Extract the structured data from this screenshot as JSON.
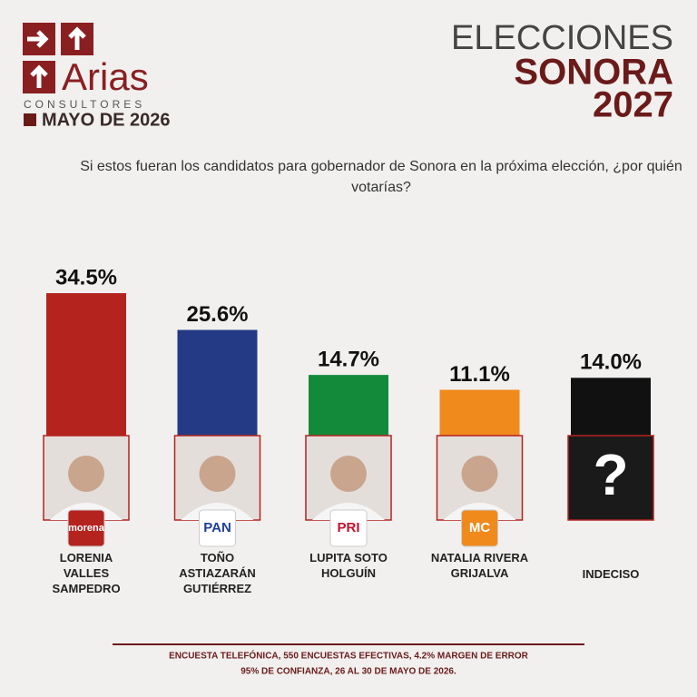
{
  "header": {
    "brand": "Arias",
    "brand_sub": "CONSULTORES",
    "date": "MAYO DE 2026",
    "title_1": "ELECCIONES",
    "title_2": "SONORA",
    "title_3": "2027"
  },
  "chart_data": {
    "type": "bar",
    "title": "Si estos fueran los candidatos para gobernador de Sonora en la próxima elección, ¿por quién votarías?",
    "categories": [
      "LORENIA VALLES SAMPEDRO",
      "TOÑO ASTIAZARÁN GUTIÉRREZ",
      "LUPITA SOTO HOLGUÍN",
      "NATALIA RIVERA GRIJALVA",
      "INDECISO"
    ],
    "values": [
      34.5,
      25.6,
      14.7,
      11.1,
      14.0
    ],
    "value_labels": [
      "34.5%",
      "25.6%",
      "14.7%",
      "11.1%",
      "14.0%"
    ],
    "colors": [
      "#b5231f",
      "#243a85",
      "#128a3a",
      "#f08a1c",
      "#111111"
    ],
    "parties": [
      "morena",
      "PAN",
      "PRI",
      "MC",
      null
    ],
    "unknown_mark": "?"
  },
  "footer": [
    "ENCUESTA TELEFÓNICA, 550 ENCUESTAS EFECTIVAS, 4.2%  MARGEN DE ERROR",
    "95% DE CONFIANZA, 26 AL 30 DE MAYO DE 2026."
  ]
}
